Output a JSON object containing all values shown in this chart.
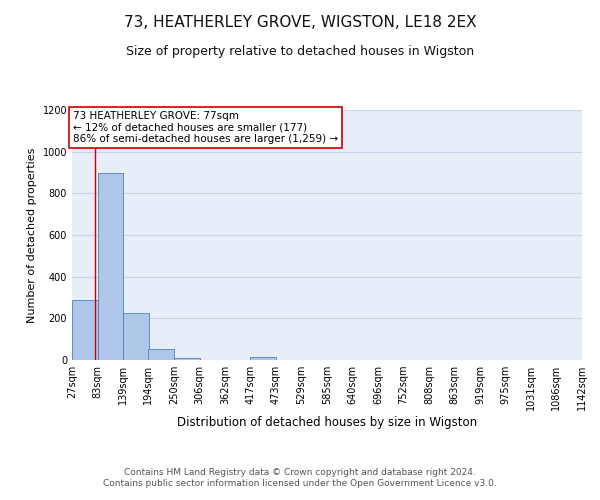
{
  "title": "73, HEATHERLEY GROVE, WIGSTON, LE18 2EX",
  "subtitle": "Size of property relative to detached houses in Wigston",
  "xlabel": "Distribution of detached houses by size in Wigston",
  "ylabel": "Number of detached properties",
  "bin_edges": [
    27,
    83,
    139,
    194,
    250,
    306,
    362,
    417,
    473,
    529,
    585,
    640,
    696,
    752,
    808,
    863,
    919,
    975,
    1031,
    1086,
    1142
  ],
  "bin_labels": [
    "27sqm",
    "83sqm",
    "139sqm",
    "194sqm",
    "250sqm",
    "306sqm",
    "362sqm",
    "417sqm",
    "473sqm",
    "529sqm",
    "585sqm",
    "640sqm",
    "696sqm",
    "752sqm",
    "808sqm",
    "863sqm",
    "919sqm",
    "975sqm",
    "1031sqm",
    "1086sqm",
    "1142sqm"
  ],
  "bar_heights": [
    290,
    900,
    225,
    55,
    12,
    0,
    0,
    15,
    0,
    0,
    0,
    0,
    0,
    0,
    0,
    0,
    0,
    0,
    0,
    0
  ],
  "bar_color": "#aec6e8",
  "bar_edge_color": "#5080c0",
  "property_size": 77,
  "property_line_color": "#cc0000",
  "annotation_text": "73 HEATHERLEY GROVE: 77sqm\n← 12% of detached houses are smaller (177)\n86% of semi-detached houses are larger (1,259) →",
  "annotation_box_color": "#ffffff",
  "annotation_box_edge_color": "#cc0000",
  "ylim": [
    0,
    1200
  ],
  "yticks": [
    0,
    200,
    400,
    600,
    800,
    1000,
    1200
  ],
  "footer_line1": "Contains HM Land Registry data © Crown copyright and database right 2024.",
  "footer_line2": "Contains public sector information licensed under the Open Government Licence v3.0.",
  "title_fontsize": 11,
  "subtitle_fontsize": 9,
  "ylabel_fontsize": 8,
  "xlabel_fontsize": 8.5,
  "tick_fontsize": 7,
  "annotation_fontsize": 7.5,
  "footer_fontsize": 6.5,
  "grid_color": "#c8d4e8",
  "bg_color": "#e8eef8"
}
